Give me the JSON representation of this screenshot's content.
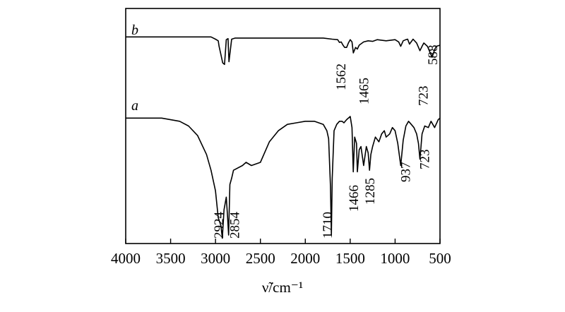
{
  "chart_data": {
    "type": "line",
    "title": "",
    "xlabel": "ν̃/cm⁻¹",
    "ylabel": "",
    "xlim": [
      4000,
      500
    ],
    "x_reversed": true,
    "grid": false,
    "x_ticks": [
      4000,
      3500,
      3000,
      2500,
      2000,
      1500,
      1000,
      500
    ],
    "series": [
      {
        "name": "b",
        "x": [
          4000,
          3200,
          3050,
          3000,
          2970,
          2960,
          2940,
          2920,
          2900,
          2880,
          2860,
          2850,
          2820,
          2780,
          2700,
          2400,
          2000,
          1800,
          1700,
          1640,
          1620,
          1600,
          1580,
          1562,
          1540,
          1520,
          1500,
          1480,
          1465,
          1440,
          1420,
          1400,
          1350,
          1300,
          1250,
          1200,
          1100,
          1000,
          960,
          937,
          910,
          880,
          860,
          840,
          800,
          760,
          723,
          700,
          680,
          640,
          588,
          560,
          540,
          500
        ],
        "y": [
          0.97,
          0.97,
          0.97,
          0.93,
          0.9,
          0.8,
          0.65,
          0.5,
          0.47,
          0.92,
          0.94,
          0.52,
          0.93,
          0.95,
          0.95,
          0.95,
          0.95,
          0.95,
          0.93,
          0.92,
          0.87,
          0.88,
          0.82,
          0.78,
          0.78,
          0.86,
          0.92,
          0.88,
          0.68,
          0.78,
          0.75,
          0.82,
          0.88,
          0.9,
          0.89,
          0.92,
          0.9,
          0.92,
          0.88,
          0.8,
          0.9,
          0.92,
          0.93,
          0.84,
          0.93,
          0.86,
          0.72,
          0.8,
          0.86,
          0.8,
          0.6,
          0.74,
          0.8,
          0.82
        ]
      },
      {
        "name": "a",
        "x": [
          4000,
          3600,
          3400,
          3300,
          3200,
          3100,
          3050,
          3000,
          2970,
          2940,
          2924,
          2905,
          2880,
          2865,
          2854,
          2840,
          2820,
          2800,
          2700,
          2660,
          2600,
          2500,
          2400,
          2300,
          2200,
          2100,
          2000,
          1950,
          1900,
          1850,
          1800,
          1760,
          1740,
          1720,
          1710,
          1700,
          1680,
          1650,
          1620,
          1590,
          1570,
          1540,
          1500,
          1480,
          1466,
          1450,
          1430,
          1420,
          1400,
          1380,
          1350,
          1320,
          1300,
          1285,
          1270,
          1250,
          1220,
          1180,
          1150,
          1120,
          1100,
          1060,
          1030,
          1000,
          970,
          937,
          910,
          880,
          850,
          820,
          790,
          760,
          740,
          723,
          700,
          670,
          630,
          600,
          560,
          520,
          500
        ],
        "y": [
          0.78,
          0.78,
          0.76,
          0.73,
          0.67,
          0.55,
          0.45,
          0.32,
          0.15,
          0.1,
          0.02,
          0.2,
          0.28,
          0.15,
          0.04,
          0.36,
          0.4,
          0.45,
          0.48,
          0.5,
          0.48,
          0.5,
          0.63,
          0.7,
          0.74,
          0.75,
          0.76,
          0.76,
          0.76,
          0.75,
          0.74,
          0.7,
          0.65,
          0.35,
          0.04,
          0.4,
          0.7,
          0.74,
          0.76,
          0.76,
          0.75,
          0.77,
          0.79,
          0.72,
          0.44,
          0.66,
          0.62,
          0.44,
          0.58,
          0.6,
          0.48,
          0.6,
          0.56,
          0.45,
          0.55,
          0.6,
          0.66,
          0.63,
          0.68,
          0.7,
          0.66,
          0.68,
          0.72,
          0.7,
          0.62,
          0.48,
          0.64,
          0.73,
          0.76,
          0.74,
          0.72,
          0.68,
          0.62,
          0.52,
          0.68,
          0.73,
          0.72,
          0.76,
          0.72,
          0.77,
          0.78
        ]
      }
    ],
    "series_labels": [
      "b",
      "a"
    ],
    "annotations": [
      {
        "text": "2924",
        "x": 2924,
        "series": "a"
      },
      {
        "text": "2854",
        "x": 2854,
        "series": "a"
      },
      {
        "text": "1710",
        "x": 1710,
        "series": "a"
      },
      {
        "text": "1466",
        "x": 1466,
        "series": "a"
      },
      {
        "text": "1285",
        "x": 1285,
        "series": "a"
      },
      {
        "text": "937",
        "x": 937,
        "series": "a"
      },
      {
        "text": "723",
        "x": 723,
        "series": "a"
      },
      {
        "text": "1562",
        "x": 1562,
        "series": "b"
      },
      {
        "text": "1465",
        "x": 1465,
        "series": "b"
      },
      {
        "text": "723",
        "x": 723,
        "series": "b"
      },
      {
        "text": "588",
        "x": 588,
        "series": "b"
      }
    ]
  }
}
